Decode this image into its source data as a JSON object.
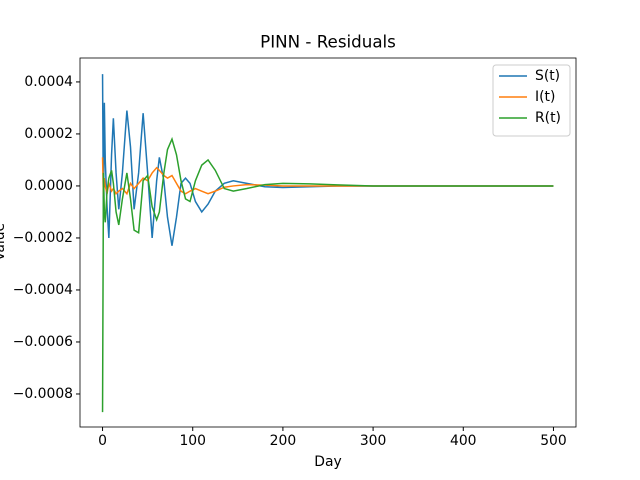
{
  "chart_data": {
    "type": "line",
    "title": "PINN - Residuals",
    "x_label": "Day",
    "y_label": "Value",
    "x": [
      0,
      1,
      2,
      3,
      5,
      7,
      10,
      12,
      15,
      18,
      22,
      27,
      31,
      35,
      40,
      45,
      50,
      55,
      60,
      63,
      68,
      72,
      77,
      82,
      87,
      92,
      97,
      103,
      110,
      117,
      125,
      135,
      145,
      160,
      180,
      200,
      230,
      260,
      300,
      400,
      500
    ],
    "series": [
      {
        "name": "S(t)",
        "color": "#1f77b4",
        "values": [
          0.00043,
          -0.00013,
          0.00032,
          0.0001,
          -8e-05,
          -0.0002,
          0.00012,
          0.00026,
          5e-05,
          -9e-05,
          5e-05,
          0.00029,
          0.00015,
          -9e-05,
          5e-05,
          0.00028,
          5e-05,
          -0.0002,
          2e-05,
          0.00011,
          2e-05,
          -0.00012,
          -0.00023,
          -0.00012,
          1e-05,
          3e-05,
          1e-05,
          -6e-05,
          -0.0001,
          -7e-05,
          -2e-05,
          1e-05,
          2e-05,
          1e-05,
          -3e-06,
          -6e-06,
          -3e-06,
          0,
          0,
          0,
          0
        ]
      },
      {
        "name": "I(t)",
        "color": "#ff7f0e",
        "values": [
          0.00011,
          -4e-05,
          3e-05,
          0,
          -3e-05,
          1e-05,
          -2e-05,
          -1e-05,
          -3e-05,
          -2e-05,
          -1e-05,
          -3e-05,
          1e-05,
          -1e-05,
          1e-05,
          3e-05,
          2e-05,
          5e-05,
          7e-05,
          6e-05,
          4e-05,
          3e-05,
          4e-05,
          1e-05,
          -2e-05,
          -3e-05,
          -2e-05,
          -1e-05,
          -2e-05,
          -3e-05,
          -2e-05,
          -5e-06,
          0,
          5e-06,
          3e-06,
          0,
          0,
          0,
          0,
          0,
          0
        ]
      },
      {
        "name": "R(t)",
        "color": "#2ca02c",
        "values": [
          -0.00087,
          5e-05,
          -0.0001,
          -0.00014,
          -2e-05,
          3e-05,
          6e-05,
          1e-05,
          -0.0001,
          -0.00015,
          -5e-05,
          5e-05,
          -5e-05,
          -0.00017,
          -0.00018,
          2e-05,
          4e-05,
          -8e-05,
          -0.00013,
          -0.0001,
          5e-05,
          0.00014,
          0.00018,
          0.00012,
          2e-05,
          -5e-05,
          -6e-05,
          2e-05,
          8e-05,
          0.0001,
          6e-05,
          -1e-05,
          -2e-05,
          -1e-05,
          5e-06,
          1e-05,
          8e-06,
          4e-06,
          0,
          0,
          0
        ]
      }
    ],
    "xlim": [
      -25,
      525
    ],
    "xticks": [
      0,
      100,
      200,
      300,
      400,
      500
    ],
    "ylim": [
      -0.000927,
      0.000492
    ],
    "yticks": [
      {
        "value": -0.0008,
        "label": "−0.0008"
      },
      {
        "value": -0.0006,
        "label": "−0.0006"
      },
      {
        "value": -0.0004,
        "label": "−0.0004"
      },
      {
        "value": -0.0002,
        "label": "−0.0002"
      },
      {
        "value": 0,
        "label": "0.0000"
      },
      {
        "value": 0.0002,
        "label": "0.0002"
      },
      {
        "value": 0.0004,
        "label": "0.0004"
      }
    ],
    "legend": "upper right",
    "grid": false
  }
}
